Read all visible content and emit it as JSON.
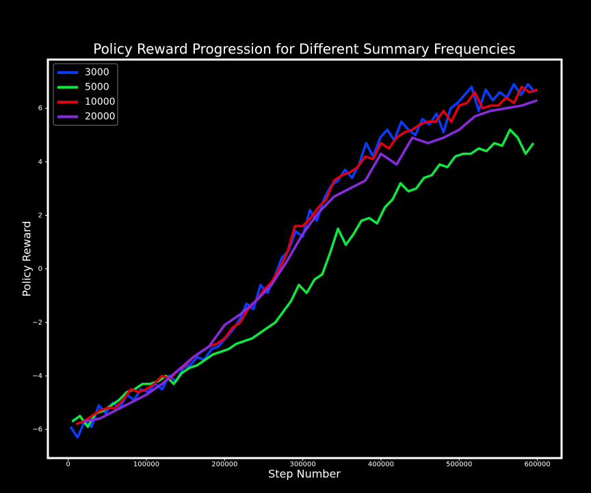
{
  "chart_data": {
    "type": "line",
    "title": "Policy Reward Progression for Different Summary Frequencies",
    "x_label": "Step Number",
    "y_label": "Policy Reward",
    "xlim": [
      -26000,
      631000
    ],
    "ylim": [
      -7.07,
      7.82
    ],
    "xticks": [
      0,
      100000,
      200000,
      300000,
      400000,
      500000,
      600000
    ],
    "yticks": [
      {
        "value": -6,
        "label": "−6"
      },
      {
        "value": -4,
        "label": "−4"
      },
      {
        "value": -2,
        "label": "−2"
      },
      0,
      2,
      4,
      6
    ],
    "grid": false,
    "legend": "upper left",
    "series": [
      {
        "name": "3000",
        "color": "#0a3cff",
        "x": [
          3000,
          12000,
          21000,
          30000,
          39000,
          48000,
          57000,
          66000,
          75000,
          84000,
          93000,
          102000,
          111000,
          120000,
          129000,
          138000,
          147000,
          156000,
          165000,
          174000,
          183000,
          192000,
          201000,
          210000,
          219000,
          228000,
          237000,
          246000,
          255000,
          264000,
          273000,
          282000,
          291000,
          300000,
          309000,
          318000,
          327000,
          336000,
          345000,
          354000,
          363000,
          372000,
          381000,
          390000,
          399000,
          408000,
          417000,
          426000,
          435000,
          444000,
          453000,
          462000,
          471000,
          480000,
          489000,
          498000,
          507000,
          516000,
          525000,
          534000,
          543000,
          552000,
          561000,
          570000,
          579000,
          588000,
          597000
        ],
        "values": [
          -5.9,
          -6.3,
          -5.7,
          -5.9,
          -5.1,
          -5.4,
          -5.0,
          -5.2,
          -4.7,
          -4.9,
          -4.5,
          -4.6,
          -4.3,
          -4.5,
          -4.0,
          -4.2,
          -3.7,
          -3.6,
          -3.3,
          -3.4,
          -3.0,
          -2.9,
          -2.6,
          -2.3,
          -1.9,
          -1.3,
          -1.5,
          -0.6,
          -0.9,
          -0.3,
          0.4,
          0.7,
          1.4,
          1.2,
          2.2,
          1.8,
          2.6,
          3.1,
          3.3,
          3.7,
          3.4,
          3.9,
          4.7,
          4.2,
          4.9,
          5.2,
          4.8,
          5.5,
          5.2,
          5.0,
          5.6,
          5.4,
          5.8,
          5.1,
          6.0,
          6.2,
          6.5,
          6.8,
          5.9,
          6.7,
          6.3,
          6.6,
          6.4,
          6.9,
          6.5,
          6.9,
          6.6
        ]
      },
      {
        "name": "5000",
        "color": "#10e840",
        "x": [
          5000,
          15000,
          25000,
          35000,
          45000,
          55000,
          65000,
          75000,
          85000,
          95000,
          105000,
          115000,
          125000,
          135000,
          145000,
          155000,
          165000,
          175000,
          185000,
          195000,
          205000,
          215000,
          225000,
          235000,
          245000,
          255000,
          265000,
          275000,
          285000,
          295000,
          305000,
          315000,
          325000,
          335000,
          345000,
          355000,
          365000,
          375000,
          385000,
          395000,
          405000,
          415000,
          425000,
          435000,
          445000,
          455000,
          465000,
          475000,
          485000,
          495000,
          505000,
          515000,
          525000,
          535000,
          545000,
          555000,
          565000,
          575000,
          585000,
          595000
        ],
        "values": [
          -5.7,
          -5.5,
          -5.9,
          -5.4,
          -5.3,
          -5.1,
          -4.9,
          -4.6,
          -4.5,
          -4.3,
          -4.3,
          -4.2,
          -4.0,
          -4.3,
          -3.9,
          -3.7,
          -3.6,
          -3.4,
          -3.2,
          -3.1,
          -3.0,
          -2.8,
          -2.7,
          -2.6,
          -2.4,
          -2.2,
          -2.0,
          -1.6,
          -1.2,
          -0.6,
          -0.9,
          -0.4,
          -0.2,
          0.6,
          1.5,
          0.9,
          1.3,
          1.8,
          1.9,
          1.7,
          2.3,
          2.6,
          3.2,
          2.9,
          3.0,
          3.4,
          3.5,
          3.9,
          3.8,
          4.2,
          4.3,
          4.3,
          4.5,
          4.4,
          4.7,
          4.6,
          5.2,
          4.9,
          4.3,
          4.7
        ]
      },
      {
        "name": "10000",
        "color": "#e00010",
        "x": [
          10000,
          20000,
          30000,
          40000,
          50000,
          60000,
          70000,
          80000,
          90000,
          100000,
          110000,
          120000,
          130000,
          140000,
          150000,
          160000,
          170000,
          180000,
          190000,
          200000,
          210000,
          220000,
          230000,
          240000,
          250000,
          260000,
          270000,
          280000,
          290000,
          300000,
          310000,
          320000,
          330000,
          340000,
          350000,
          360000,
          370000,
          380000,
          390000,
          400000,
          410000,
          420000,
          430000,
          440000,
          450000,
          460000,
          470000,
          480000,
          490000,
          500000,
          510000,
          520000,
          530000,
          540000,
          550000,
          560000,
          570000,
          580000,
          590000,
          600000
        ],
        "values": [
          -5.8,
          -5.7,
          -5.5,
          -5.3,
          -5.2,
          -5.2,
          -4.9,
          -4.5,
          -4.6,
          -4.5,
          -4.3,
          -4.0,
          -4.1,
          -3.8,
          -3.6,
          -3.3,
          -3.1,
          -2.9,
          -2.8,
          -2.6,
          -2.2,
          -2.0,
          -1.5,
          -1.2,
          -0.8,
          -0.5,
          0.0,
          0.6,
          1.6,
          1.6,
          1.9,
          2.3,
          2.6,
          3.3,
          3.5,
          3.6,
          3.8,
          4.2,
          4.1,
          4.7,
          4.5,
          4.9,
          5.1,
          5.2,
          5.4,
          5.5,
          5.5,
          5.9,
          5.5,
          6.1,
          6.2,
          6.6,
          6.0,
          6.1,
          6.1,
          6.4,
          6.2,
          6.8,
          6.6,
          6.7
        ]
      },
      {
        "name": "20000",
        "color": "#8a2be2",
        "x": [
          20000,
          40000,
          60000,
          80000,
          100000,
          120000,
          140000,
          160000,
          180000,
          200000,
          220000,
          240000,
          260000,
          280000,
          300000,
          320000,
          340000,
          360000,
          380000,
          400000,
          420000,
          440000,
          460000,
          480000,
          500000,
          520000,
          540000,
          560000,
          580000,
          600000
        ],
        "values": [
          -5.7,
          -5.6,
          -5.3,
          -5.0,
          -4.7,
          -4.3,
          -3.8,
          -3.3,
          -2.9,
          -2.1,
          -1.7,
          -1.2,
          -0.6,
          0.3,
          1.3,
          2.1,
          2.7,
          3.0,
          3.3,
          4.3,
          3.9,
          4.9,
          4.7,
          4.9,
          5.2,
          5.7,
          5.9,
          6.0,
          6.1,
          6.3
        ]
      }
    ]
  }
}
